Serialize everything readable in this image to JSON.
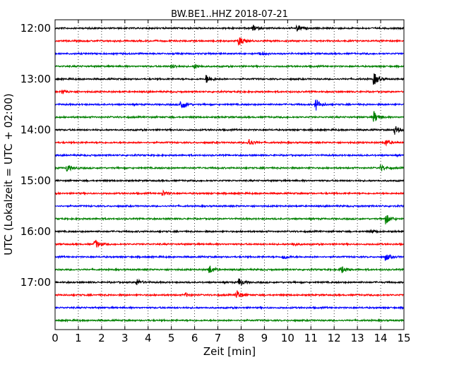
{
  "chart_data": {
    "type": "line",
    "title": "BW.BE1..HHZ 2018-07-21",
    "xlabel": "Zeit  [min]",
    "ylabel": "UTC (Lokalzeit = UTC + 02:00)",
    "xlim": [
      0,
      15
    ],
    "x_ticks": [
      "0",
      "1",
      "2",
      "3",
      "4",
      "5",
      "6",
      "7",
      "8",
      "9",
      "10",
      "11",
      "12",
      "13",
      "14",
      "15"
    ],
    "y_tick_labels": [
      "12:00",
      "13:00",
      "14:00",
      "15:00",
      "16:00",
      "17:00"
    ],
    "trace_minutes_per_row": 15,
    "grid": "vertical dotted at each minute",
    "colors": [
      "#000000",
      "#ff0000",
      "#0000ff",
      "#008000"
    ],
    "traces": [
      {
        "start": "12:00",
        "events": [
          {
            "t": 8.5,
            "amp": 0.25
          },
          {
            "t": 10.4,
            "amp": 0.3
          }
        ]
      },
      {
        "start": "12:15",
        "events": [
          {
            "t": 7.9,
            "amp": 0.45
          }
        ]
      },
      {
        "start": "12:30",
        "events": [
          {
            "t": 8.8,
            "amp": 0.15
          }
        ]
      },
      {
        "start": "12:45",
        "events": [
          {
            "t": 5.0,
            "amp": 0.2
          },
          {
            "t": 6.0,
            "amp": 0.2
          }
        ]
      },
      {
        "start": "13:00",
        "events": [
          {
            "t": 6.5,
            "amp": 0.4
          },
          {
            "t": 13.7,
            "amp": 0.6
          }
        ]
      },
      {
        "start": "13:15",
        "events": [
          {
            "t": 0.3,
            "amp": 0.2
          }
        ]
      },
      {
        "start": "13:30",
        "events": [
          {
            "t": 5.4,
            "amp": 0.55
          },
          {
            "t": 11.2,
            "amp": 0.55
          }
        ]
      },
      {
        "start": "13:45",
        "events": [
          {
            "t": 13.7,
            "amp": 0.55
          }
        ]
      },
      {
        "start": "14:00",
        "events": [
          {
            "t": 14.6,
            "amp": 0.4
          }
        ]
      },
      {
        "start": "14:15",
        "events": [
          {
            "t": 8.3,
            "amp": 0.4
          },
          {
            "t": 14.2,
            "amp": 0.3
          }
        ]
      },
      {
        "start": "14:30",
        "events": []
      },
      {
        "start": "14:45",
        "events": [
          {
            "t": 0.5,
            "amp": 0.35
          },
          {
            "t": 14.0,
            "amp": 0.3
          }
        ]
      },
      {
        "start": "15:00",
        "events": []
      },
      {
        "start": "15:15",
        "events": [
          {
            "t": 4.6,
            "amp": 0.25
          }
        ]
      },
      {
        "start": "15:30",
        "events": []
      },
      {
        "start": "15:45",
        "events": [
          {
            "t": 14.2,
            "amp": 0.5
          }
        ]
      },
      {
        "start": "16:00",
        "events": [
          {
            "t": 13.6,
            "amp": 0.15
          }
        ]
      },
      {
        "start": "16:15",
        "events": [
          {
            "t": 1.7,
            "amp": 0.45
          },
          {
            "t": 10.2,
            "amp": 0.15
          }
        ]
      },
      {
        "start": "16:30",
        "events": [
          {
            "t": 9.8,
            "amp": 0.25
          },
          {
            "t": 14.2,
            "amp": 0.35
          }
        ]
      },
      {
        "start": "16:45",
        "events": [
          {
            "t": 6.6,
            "amp": 0.45
          },
          {
            "t": 12.3,
            "amp": 0.35
          }
        ]
      },
      {
        "start": "17:00",
        "events": [
          {
            "t": 3.5,
            "amp": 0.3
          },
          {
            "t": 7.9,
            "amp": 0.4
          }
        ]
      },
      {
        "start": "17:15",
        "events": [
          {
            "t": 7.8,
            "amp": 0.45
          },
          {
            "t": 5.6,
            "amp": 0.15
          }
        ]
      },
      {
        "start": "17:30",
        "events": []
      },
      {
        "start": "17:45",
        "events": []
      }
    ]
  }
}
